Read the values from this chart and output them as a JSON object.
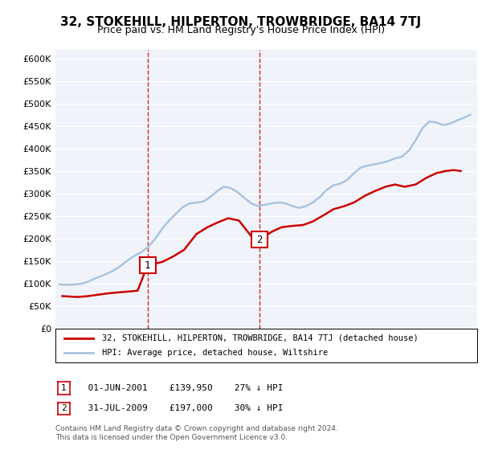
{
  "title": "32, STOKEHILL, HILPERTON, TROWBRIDGE, BA14 7TJ",
  "subtitle": "Price paid vs. HM Land Registry's House Price Index (HPI)",
  "ylabel_ticks": [
    "£0",
    "£50K",
    "£100K",
    "£150K",
    "£200K",
    "£250K",
    "£300K",
    "£350K",
    "£400K",
    "£450K",
    "£500K",
    "£550K",
    "£600K"
  ],
  "ylim": [
    0,
    600000
  ],
  "xlim_start": 1995.0,
  "xlim_end": 2025.5,
  "hpi_color": "#aac4e0",
  "price_color": "#cc0000",
  "vline_color": "#cc0000",
  "vline_style": "--",
  "marker1_x": 2001.42,
  "marker1_y": 139950,
  "marker2_x": 2009.58,
  "marker2_y": 197000,
  "marker1_label": "1",
  "marker2_label": "2",
  "legend_line1": "32, STOKEHILL, HILPERTON, TROWBRIDGE, BA14 7TJ (detached house)",
  "legend_line2": "HPI: Average price, detached house, Wiltshire",
  "table_row1": "1    01-JUN-2001    £139,950    27% ↓ HPI",
  "table_row2": "2    31-JUL-2009    £197,000    30% ↓ HPI",
  "footer": "Contains HM Land Registry data © Crown copyright and database right 2024.\nThis data is licensed under the Open Government Licence v3.0.",
  "background_color": "#ffffff",
  "plot_bg_color": "#f0f4fa"
}
